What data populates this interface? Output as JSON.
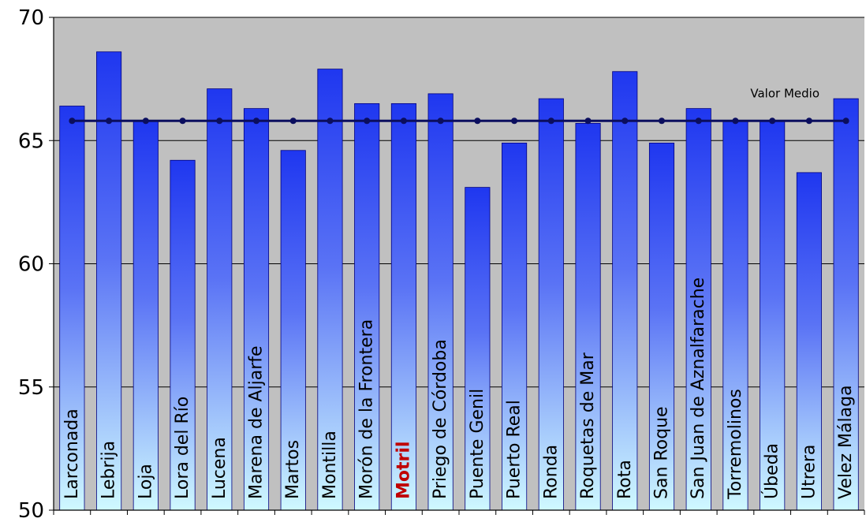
{
  "chart_data": {
    "type": "bar",
    "categories": [
      "Larconada",
      "Lebrija",
      "Loja",
      "Lora del Río",
      "Lucena",
      "Marena de Aljarfe",
      "Martos",
      "Montilla",
      "Morón de la Frontera",
      "Motril",
      "Priego de Córdoba",
      "Puente Genil",
      "Puerto Real",
      "Ronda",
      "Roquetas de Mar",
      "Rota",
      "San Roque",
      "San Juan de Aznalfarache",
      "Torremolinos",
      "Úbeda",
      "Utrera",
      "Velez Málaga"
    ],
    "values": [
      66.4,
      68.6,
      65.8,
      64.2,
      67.1,
      66.3,
      64.6,
      67.9,
      66.5,
      66.5,
      66.9,
      63.1,
      64.9,
      66.7,
      65.7,
      67.8,
      64.9,
      66.3,
      65.8,
      65.8,
      63.7,
      66.7
    ],
    "highlight_category": "Motril",
    "reference_line": {
      "label": "Valor Medio",
      "value": 65.8
    },
    "ylim": [
      50,
      70
    ],
    "yticks": [
      50,
      55,
      60,
      65,
      70
    ],
    "grid": true,
    "title": "",
    "xlabel": "",
    "ylabel": "",
    "colors": {
      "plot_background": "#c0c0c0",
      "bar_top": "#1f37f0",
      "bar_bottom": "#cff9ff",
      "bar_outline": "#000080",
      "reference_line": "#0b0e5e",
      "highlight_label": "#c00000",
      "label_text": "#000000",
      "gridline": "#000000"
    }
  }
}
